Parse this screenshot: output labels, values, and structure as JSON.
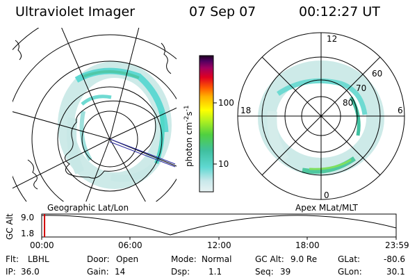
{
  "header": {
    "title": "Ultraviolet Imager",
    "date": "07 Sep 07",
    "time": "00:12:27 UT"
  },
  "left_map": {
    "label": "Geographic Lat/Lon"
  },
  "right_map": {
    "label": "Apex  MLat/MLT",
    "mlt_labels": [
      "12",
      "18",
      "6",
      "0"
    ],
    "lat_labels": [
      "60",
      "70",
      "80"
    ]
  },
  "colorbar": {
    "unit": "photon cm",
    "unit_exp1": "-2",
    "unit_mid": "s",
    "unit_exp2": "-1",
    "tick_labels": [
      "100",
      "10"
    ]
  },
  "timeline": {
    "y_label": "GC Alt",
    "y_ticks": [
      "9.0",
      "1.8"
    ],
    "x_ticks": [
      "00:00",
      "06:00",
      "12:00",
      "18:00",
      "23:59"
    ],
    "current_time_fraction": 0.008
  },
  "info": {
    "flt_label": "Flt:",
    "flt_value": "LBHL",
    "ip_label": "IP:",
    "ip_value": "36.0",
    "door_label": "Door:",
    "door_value": "Open",
    "gain_label": "Gain:",
    "gain_value": "14",
    "mode_label": "Mode:",
    "mode_value": "Normal",
    "dsp_label": "Dsp:",
    "dsp_value": "1.1",
    "gcalt_label": "GC Alt:",
    "gcalt_value": "9.0 Re",
    "seq_label": "Seq:",
    "seq_value": "39",
    "glat_label": "GLat:",
    "glat_value": "-80.6",
    "glon_label": "GLon:",
    "glon_value": "30.1"
  },
  "colors": {
    "bg": "#ffffff",
    "line": "#000000",
    "orbit_marker": "#d00000",
    "track": "#2a2aa0"
  }
}
